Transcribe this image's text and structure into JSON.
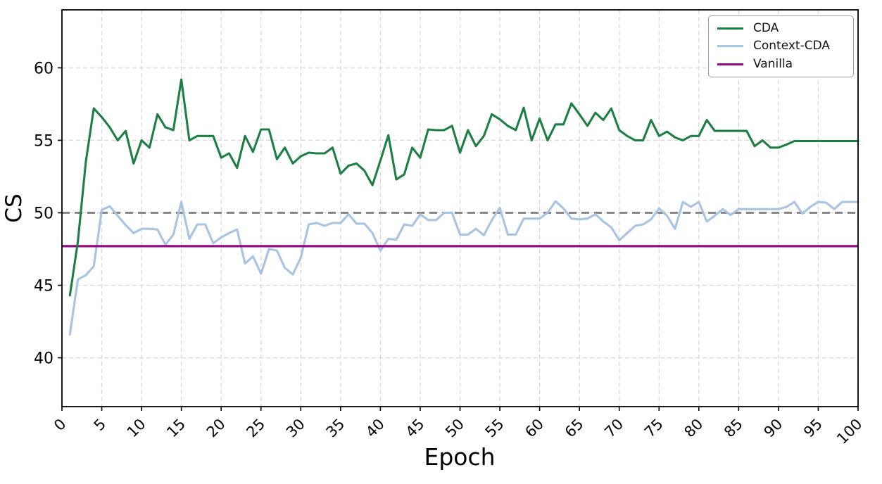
{
  "chart_data": {
    "type": "line",
    "title": "",
    "xlabel": "Epoch",
    "ylabel": "CS",
    "xlim": [
      0,
      100
    ],
    "ylim": [
      36.63,
      64.0
    ],
    "x_ticks": [
      0,
      5,
      10,
      15,
      20,
      25,
      30,
      35,
      40,
      45,
      50,
      55,
      60,
      65,
      70,
      75,
      80,
      85,
      90,
      95,
      100
    ],
    "y_ticks": [
      40,
      45,
      50,
      55,
      60
    ],
    "grid": true,
    "grid_style": "dashed",
    "legend_position": "upper right",
    "x_range": [
      1,
      100
    ],
    "series": [
      {
        "name": "CDA",
        "color": "#1e7f46",
        "style": "solid",
        "values": [
          44.3,
          48.0,
          53.5,
          57.2,
          56.6,
          55.9,
          55.0,
          55.65,
          53.4,
          55.0,
          54.5,
          56.8,
          55.9,
          55.7,
          59.2,
          55.0,
          55.3,
          55.3,
          55.3,
          53.8,
          54.1,
          53.1,
          55.3,
          54.2,
          55.75,
          55.75,
          53.7,
          54.5,
          53.4,
          53.9,
          54.15,
          54.1,
          54.1,
          54.5,
          52.7,
          53.25,
          53.4,
          52.9,
          51.9,
          53.6,
          55.35,
          52.3,
          52.65,
          54.5,
          53.8,
          55.75,
          55.7,
          55.7,
          56.0,
          54.15,
          55.7,
          54.6,
          55.3,
          56.8,
          56.45,
          56.0,
          55.7,
          57.25,
          55.0,
          56.5,
          55.0,
          56.1,
          56.1,
          57.55,
          56.8,
          56.0,
          56.9,
          56.4,
          57.2,
          55.7,
          55.3,
          55.0,
          55.0,
          56.4,
          55.3,
          55.6,
          55.2,
          55.0,
          55.3,
          55.3,
          56.4,
          55.65,
          55.65,
          55.65,
          55.65,
          55.65,
          54.6,
          55.0,
          54.5,
          54.5,
          54.7,
          54.95,
          54.95,
          54.95,
          54.95,
          54.95,
          54.95,
          54.95,
          54.95,
          54.95
        ]
      },
      {
        "name": "Context-CDA",
        "color": "#a9c3e3",
        "style": "solid",
        "values": [
          41.6,
          45.4,
          45.7,
          46.3,
          50.2,
          50.45,
          49.8,
          49.15,
          48.6,
          48.9,
          48.9,
          48.85,
          47.8,
          48.5,
          50.75,
          48.2,
          49.2,
          49.2,
          47.9,
          48.3,
          48.6,
          48.85,
          46.5,
          47.0,
          45.8,
          47.5,
          47.4,
          46.2,
          45.75,
          46.9,
          49.2,
          49.3,
          49.1,
          49.3,
          49.3,
          49.9,
          49.25,
          49.25,
          48.6,
          47.4,
          48.2,
          48.15,
          49.2,
          49.1,
          49.9,
          49.5,
          49.5,
          50.0,
          50.0,
          48.5,
          48.5,
          48.9,
          48.45,
          49.5,
          50.35,
          48.5,
          48.5,
          49.6,
          49.6,
          49.6,
          50.0,
          50.8,
          50.3,
          49.6,
          49.55,
          49.6,
          49.9,
          49.4,
          49.0,
          48.1,
          48.6,
          49.1,
          49.2,
          49.55,
          50.3,
          49.8,
          48.9,
          50.75,
          50.4,
          50.75,
          49.4,
          49.8,
          50.25,
          49.85,
          50.25,
          50.25,
          50.25,
          50.25,
          50.25,
          50.25,
          50.4,
          50.75,
          49.95,
          50.4,
          50.75,
          50.7,
          50.25,
          50.75,
          50.75,
          50.75
        ]
      },
      {
        "name": "Vanilla",
        "color": "#8e0a80",
        "style": "solid",
        "constant": 47.7
      }
    ],
    "reference_lines": [
      {
        "value": 50.0,
        "color": "#7f7f7f",
        "style": "dashed",
        "orientation": "horizontal"
      }
    ]
  },
  "colors": {
    "cda": "#1e7f46",
    "context_cda": "#a9c3e3",
    "vanilla": "#8e0a80",
    "reference": "#7f7f7f",
    "grid": "#d9d9d9",
    "spine": "#000000",
    "background": "#ffffff"
  }
}
